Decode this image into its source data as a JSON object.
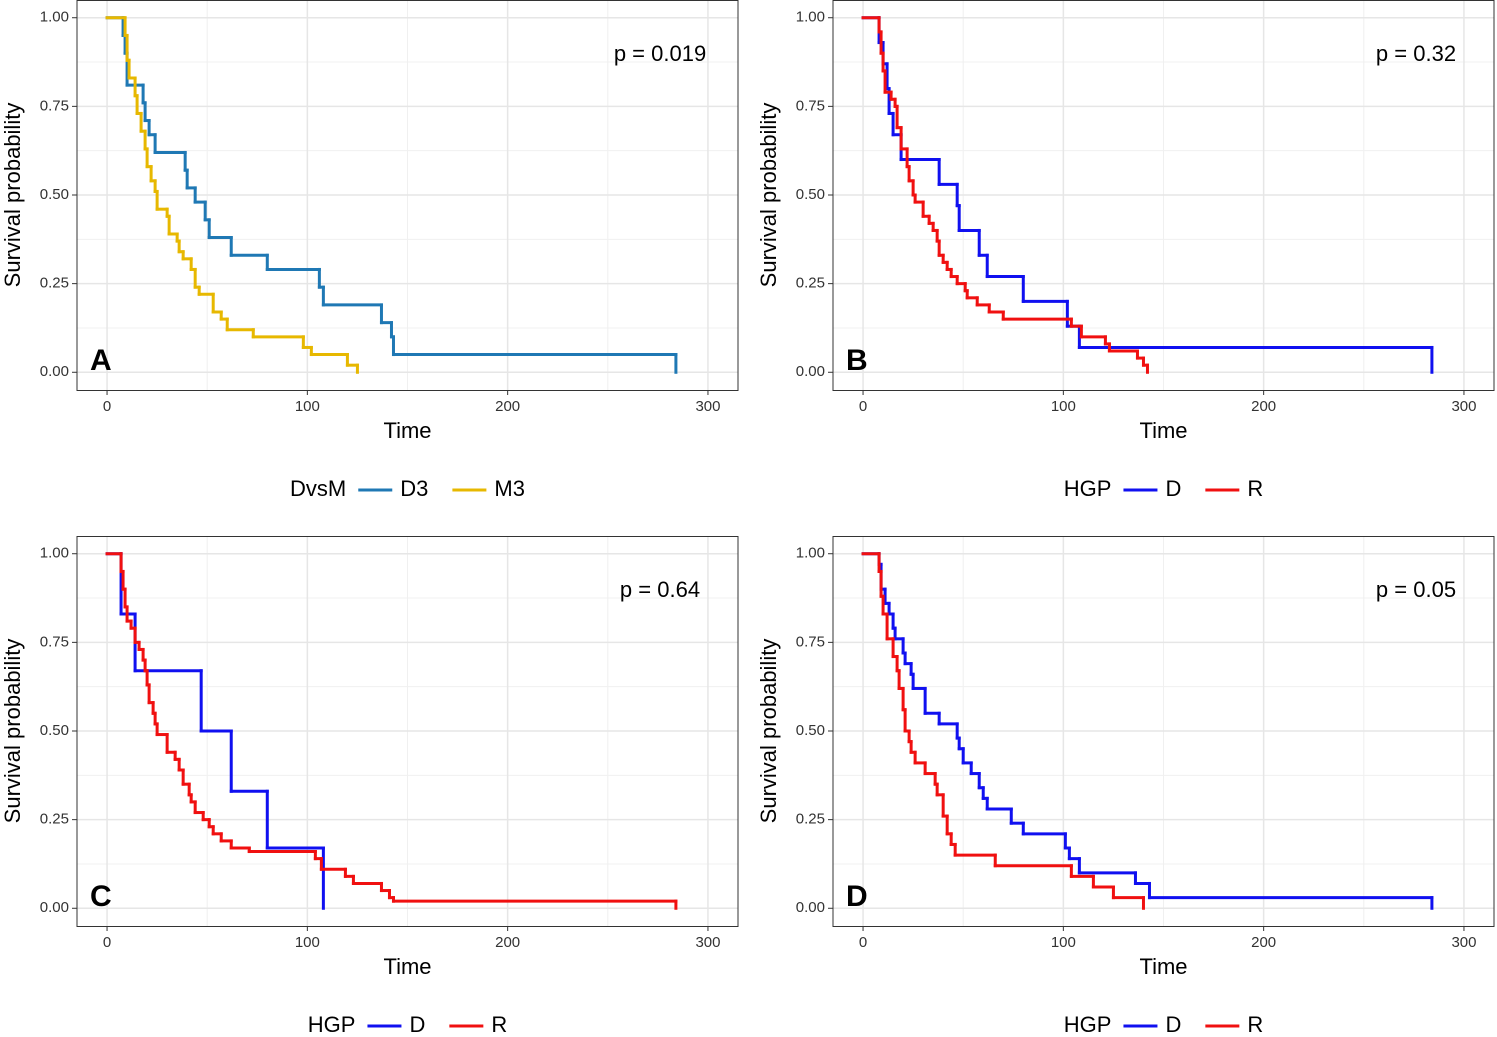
{
  "chart_data": [
    {
      "type": "step",
      "label": "A",
      "annotation": "p = 0.019",
      "xlabel": "Time",
      "ylabel": "Survival probability",
      "legend_title": "DvsM",
      "xlim": [
        -15,
        315
      ],
      "ylim": [
        -0.05,
        1.05
      ],
      "xticks": [
        0,
        100,
        200,
        300
      ],
      "yticks": [
        {
          "value": 0,
          "label": "0.00"
        },
        {
          "value": 0.25,
          "label": "0.25"
        },
        {
          "value": 0.5,
          "label": "0.50"
        },
        {
          "value": 0.75,
          "label": "0.75"
        },
        {
          "value": 1,
          "label": "1.00"
        }
      ],
      "grid": true,
      "series": [
        {
          "name": "D3",
          "color": "#1F78B4",
          "x": [
            0,
            8,
            9,
            10,
            18,
            19,
            21,
            24,
            39,
            40,
            44,
            49,
            51,
            62,
            80,
            106,
            108,
            137,
            142,
            143,
            284
          ],
          "values": [
            1,
            0.95,
            0.9,
            0.81,
            0.76,
            0.71,
            0.67,
            0.62,
            0.57,
            0.52,
            0.48,
            0.43,
            0.38,
            0.33,
            0.29,
            0.24,
            0.19,
            0.14,
            0.1,
            0.05,
            0
          ]
        },
        {
          "name": "M3",
          "color": "#E7B800",
          "x": [
            0,
            9,
            10,
            11,
            14,
            15,
            17,
            19,
            20,
            22,
            24,
            25,
            30,
            31,
            35,
            36,
            38,
            42,
            44,
            46,
            53,
            57,
            60,
            73,
            98,
            102,
            120,
            125
          ],
          "values": [
            1,
            0.95,
            0.88,
            0.83,
            0.78,
            0.73,
            0.68,
            0.63,
            0.58,
            0.54,
            0.51,
            0.46,
            0.44,
            0.39,
            0.37,
            0.34,
            0.32,
            0.29,
            0.24,
            0.22,
            0.17,
            0.15,
            0.12,
            0.1,
            0.07,
            0.05,
            0.02,
            0
          ]
        }
      ]
    },
    {
      "type": "step",
      "label": "B",
      "annotation": "p = 0.32",
      "xlabel": "Time",
      "ylabel": "Survival probability",
      "legend_title": "HGP",
      "xlim": [
        -15,
        315
      ],
      "ylim": [
        -0.05,
        1.05
      ],
      "xticks": [
        0,
        100,
        200,
        300
      ],
      "yticks": [
        {
          "value": 0,
          "label": "0.00"
        },
        {
          "value": 0.25,
          "label": "0.25"
        },
        {
          "value": 0.5,
          "label": "0.50"
        },
        {
          "value": 0.75,
          "label": "0.75"
        },
        {
          "value": 1,
          "label": "1.00"
        }
      ],
      "grid": true,
      "series": [
        {
          "name": "D",
          "color": "#1010F0",
          "x": [
            0,
            8,
            10,
            12,
            13,
            15,
            19,
            38,
            47,
            48,
            58,
            62,
            80,
            102,
            108,
            284
          ],
          "values": [
            1,
            0.93,
            0.87,
            0.8,
            0.73,
            0.67,
            0.6,
            0.53,
            0.47,
            0.4,
            0.33,
            0.27,
            0.2,
            0.13,
            0.07,
            0
          ]
        },
        {
          "name": "R",
          "color": "#F01010",
          "x": [
            0,
            8,
            9,
            10,
            11,
            14,
            16,
            17,
            19,
            22,
            23,
            25,
            26,
            30,
            33,
            35,
            37,
            38,
            40,
            42,
            44,
            47,
            51,
            52,
            57,
            63,
            70,
            104,
            109,
            121,
            123,
            137,
            140,
            142
          ],
          "values": [
            1,
            0.96,
            0.9,
            0.85,
            0.79,
            0.77,
            0.75,
            0.69,
            0.63,
            0.58,
            0.54,
            0.5,
            0.48,
            0.44,
            0.42,
            0.4,
            0.37,
            0.33,
            0.31,
            0.29,
            0.27,
            0.25,
            0.23,
            0.21,
            0.19,
            0.17,
            0.15,
            0.13,
            0.1,
            0.08,
            0.06,
            0.04,
            0.02,
            0
          ]
        }
      ]
    },
    {
      "type": "step",
      "label": "C",
      "annotation": "p = 0.64",
      "xlabel": "Time",
      "ylabel": "Survival probability",
      "legend_title": "HGP",
      "xlim": [
        -15,
        315
      ],
      "ylim": [
        -0.05,
        1.05
      ],
      "xticks": [
        0,
        100,
        200,
        300
      ],
      "yticks": [
        {
          "value": 0,
          "label": "0.00"
        },
        {
          "value": 0.25,
          "label": "0.25"
        },
        {
          "value": 0.5,
          "label": "0.50"
        },
        {
          "value": 0.75,
          "label": "0.75"
        },
        {
          "value": 1,
          "label": "1.00"
        }
      ],
      "grid": true,
      "series": [
        {
          "name": "D",
          "color": "#1010F0",
          "x": [
            0,
            7,
            14,
            47,
            62,
            80,
            108
          ],
          "values": [
            1,
            0.83,
            0.67,
            0.5,
            0.33,
            0.17,
            0
          ]
        },
        {
          "name": "R",
          "color": "#F01010",
          "x": [
            0,
            7,
            8,
            9,
            10,
            12,
            14,
            16,
            18,
            19,
            20,
            21,
            23,
            24,
            25,
            30,
            34,
            36,
            38,
            41,
            42,
            44,
            48,
            51,
            53,
            57,
            62,
            71,
            104,
            107,
            119,
            123,
            137,
            141,
            143,
            284
          ],
          "values": [
            1,
            0.95,
            0.9,
            0.85,
            0.81,
            0.79,
            0.75,
            0.73,
            0.7,
            0.67,
            0.63,
            0.58,
            0.55,
            0.52,
            0.49,
            0.44,
            0.42,
            0.39,
            0.35,
            0.32,
            0.3,
            0.27,
            0.25,
            0.23,
            0.21,
            0.19,
            0.17,
            0.16,
            0.14,
            0.11,
            0.09,
            0.07,
            0.05,
            0.03,
            0.02,
            0
          ]
        }
      ]
    },
    {
      "type": "step",
      "label": "D",
      "annotation": "p = 0.05",
      "xlabel": "Time",
      "ylabel": "Survival probability",
      "legend_title": "HGP",
      "xlim": [
        -15,
        315
      ],
      "ylim": [
        -0.05,
        1.05
      ],
      "xticks": [
        0,
        100,
        200,
        300
      ],
      "yticks": [
        {
          "value": 0,
          "label": "0.00"
        },
        {
          "value": 0.25,
          "label": "0.25"
        },
        {
          "value": 0.5,
          "label": "0.50"
        },
        {
          "value": 0.75,
          "label": "0.75"
        },
        {
          "value": 1,
          "label": "1.00"
        }
      ],
      "grid": true,
      "series": [
        {
          "name": "D",
          "color": "#1010F0",
          "x": [
            0,
            8,
            9,
            11,
            13,
            15,
            16,
            20,
            21,
            24,
            25,
            31,
            38,
            47,
            48,
            50,
            54,
            58,
            60,
            62,
            74,
            80,
            101,
            103,
            108,
            136,
            143,
            284
          ],
          "values": [
            1,
            0.97,
            0.9,
            0.86,
            0.83,
            0.79,
            0.76,
            0.72,
            0.69,
            0.66,
            0.62,
            0.55,
            0.52,
            0.48,
            0.45,
            0.41,
            0.38,
            0.34,
            0.31,
            0.28,
            0.24,
            0.21,
            0.17,
            0.14,
            0.1,
            0.07,
            0.03,
            0
          ]
        },
        {
          "name": "R",
          "color": "#F01010",
          "x": [
            0,
            8,
            9,
            10,
            12,
            15,
            17,
            18,
            20,
            21,
            23,
            24,
            26,
            31,
            36,
            37,
            40,
            42,
            44,
            46,
            66,
            104,
            115,
            125,
            140
          ],
          "values": [
            1,
            0.95,
            0.88,
            0.83,
            0.76,
            0.71,
            0.67,
            0.62,
            0.56,
            0.5,
            0.47,
            0.44,
            0.41,
            0.38,
            0.35,
            0.32,
            0.26,
            0.21,
            0.18,
            0.15,
            0.12,
            0.09,
            0.06,
            0.03,
            0
          ]
        }
      ]
    }
  ]
}
